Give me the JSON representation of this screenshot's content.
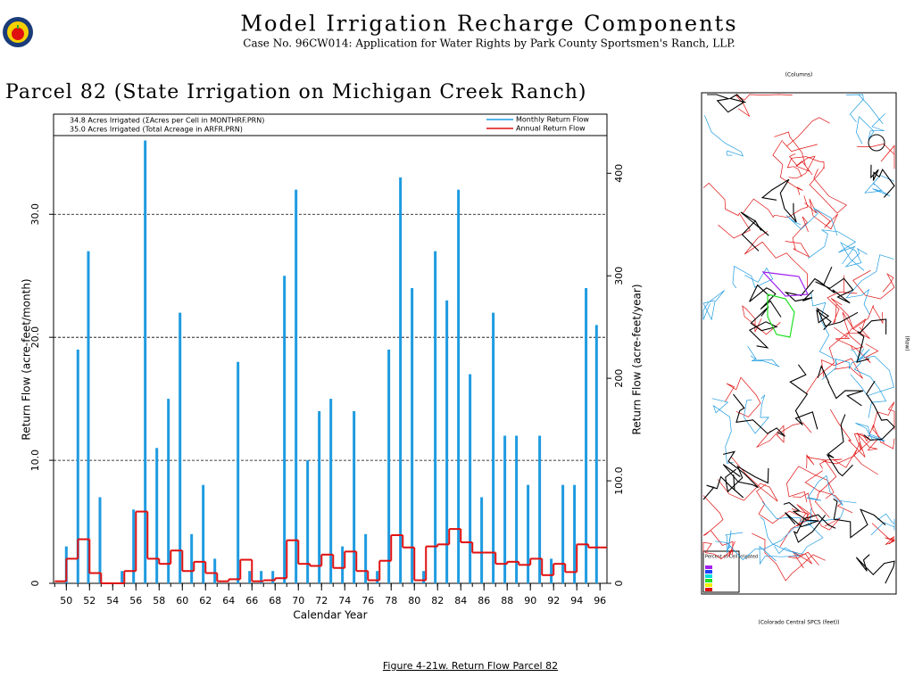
{
  "header": {
    "title": "Model Irrigation Recharge Components",
    "subtitle": "Case No. 96CW014: Application for Water Rights by Park County Sportsmen's Ranch, LLP."
  },
  "chart_data": {
    "type": "bar",
    "title": "Parcel 82 (State Irrigation on Michigan Creek Ranch)",
    "annotations": [
      "34.8 Acres Irrigated (ΣAcres per Cell in MONTHRF.PRN)",
      "35.0 Acres Irrigated (Total Acreage in ARFR.PRN)"
    ],
    "xlabel": "Calendar Year",
    "ylabel": "Return Flow (acre-feet/month)",
    "y2label": "Return Flow (acre-feet/year)",
    "xlim": [
      48.9,
      96.6
    ],
    "xticks": [
      50,
      52,
      54,
      56,
      58,
      60,
      62,
      64,
      66,
      68,
      70,
      72,
      74,
      76,
      78,
      80,
      82,
      84,
      86,
      88,
      90,
      92,
      94,
      96
    ],
    "ylim": [
      0,
      36.4
    ],
    "yticks": [
      0,
      {
        "value": 10,
        "label": "10.0"
      },
      {
        "value": 20,
        "label": "20.0"
      },
      {
        "value": 30,
        "label": "30.0"
      }
    ],
    "y2lim": [
      0,
      436.8
    ],
    "y2ticks": [
      0,
      {
        "value": 100,
        "label": "100.0"
      },
      200,
      300,
      400
    ],
    "grid": true,
    "series": [
      {
        "name": "Monthly Return Flow",
        "type": "bar",
        "color": "#1e9be0",
        "x": [
          50.0,
          51.0,
          51.9,
          52.9,
          54.8,
          55.8,
          56.8,
          57.8,
          58.8,
          59.8,
          60.8,
          61.8,
          62.8,
          64.8,
          65.8,
          66.8,
          67.8,
          68.8,
          69.8,
          70.8,
          71.8,
          72.8,
          73.8,
          74.8,
          75.8,
          76.8,
          77.8,
          78.8,
          79.8,
          80.8,
          81.8,
          82.8,
          83.8,
          84.8,
          85.8,
          86.8,
          87.8,
          88.8,
          89.8,
          90.8,
          91.8,
          92.8,
          93.8,
          94.8,
          95.7
        ],
        "values": [
          3,
          19,
          27,
          7,
          1,
          6,
          36,
          11,
          15,
          22,
          4,
          8,
          2,
          18,
          1,
          1,
          1,
          25,
          32,
          10,
          14,
          15,
          3,
          14,
          4,
          1,
          19,
          33,
          24,
          1,
          27,
          23,
          32,
          17,
          7,
          22,
          12,
          12,
          8,
          12,
          2,
          8,
          8,
          24,
          21
        ]
      },
      {
        "name": "Annual Return Flow",
        "type": "step",
        "color": "#e01010",
        "axis": "y2",
        "x": [
          49,
          50,
          51,
          52,
          53,
          54,
          55,
          56,
          57,
          58,
          59,
          60,
          61,
          62,
          63,
          64,
          65,
          66,
          67,
          68,
          69,
          70,
          71,
          72,
          73,
          74,
          75,
          76,
          77,
          78,
          79,
          80,
          81,
          82,
          83,
          84,
          85,
          86,
          87,
          88,
          89,
          90,
          91,
          92,
          93,
          94,
          95,
          96
        ],
        "values": [
          2,
          24,
          43,
          10,
          0,
          0,
          12,
          70,
          24,
          19,
          32,
          12,
          21,
          10,
          2,
          4,
          23,
          2,
          3,
          5,
          42,
          19,
          17,
          28,
          15,
          31,
          12,
          3,
          22,
          47,
          35,
          3,
          36,
          38,
          53,
          40,
          30,
          30,
          19,
          21,
          18,
          24,
          8,
          19,
          11,
          38,
          35,
          35
        ]
      }
    ]
  },
  "map": {
    "column_label": "(Columns)",
    "row_label": "(Row)",
    "x_label": "(Colorado Central SPCS (feet))",
    "legend_title": "Percent of Cell Irrigated"
  },
  "caption": "Figure 4-21w.  Return Flow Parcel 82"
}
